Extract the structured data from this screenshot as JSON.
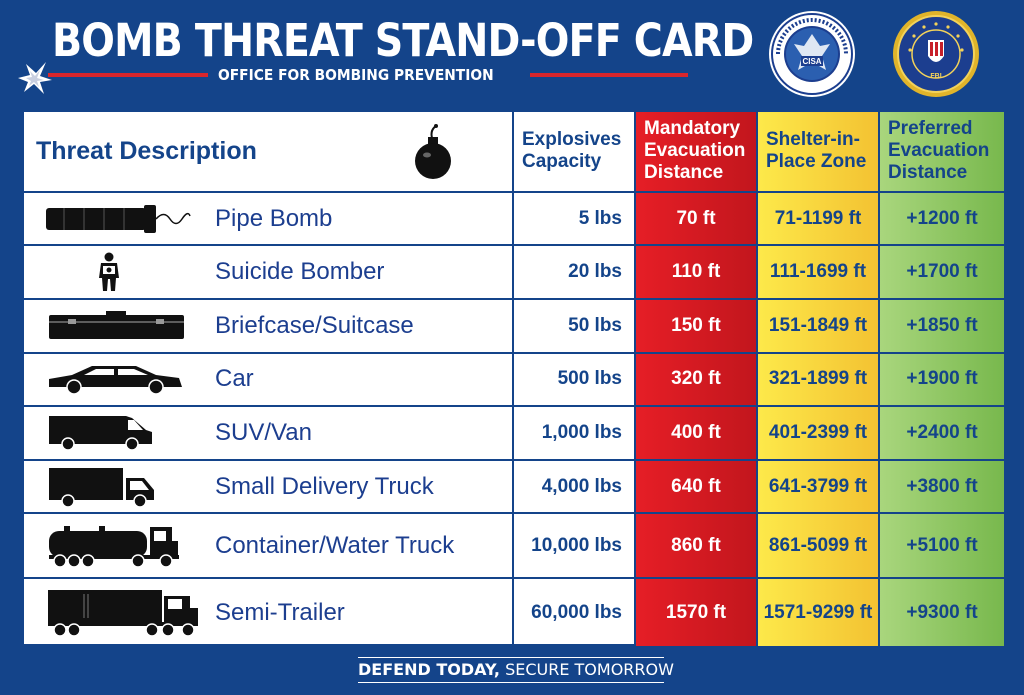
{
  "header": {
    "title": "BOMB THREAT STAND-OFF CARD",
    "subtitle": "OFFICE FOR BOMBING PREVENTION",
    "seal_left_text": "CISA",
    "seal_right_text": "FBI"
  },
  "table": {
    "headers": {
      "threat": "Threat Description",
      "capacity": [
        "Explosives",
        "Capacity"
      ],
      "mandatory": [
        "Mandatory",
        "Evacuation",
        "Distance"
      ],
      "shelter": [
        "Shelter-in-",
        "Place Zone"
      ],
      "preferred": [
        "Preferred",
        "Evacuation",
        "Distance"
      ]
    },
    "rows": [
      {
        "icon": "pipe-bomb-icon",
        "name": "Pipe Bomb",
        "capacity": "5 lbs",
        "mandatory": "70 ft",
        "shelter": "71-1199 ft",
        "preferred": "+1200 ft"
      },
      {
        "icon": "suicide-bomber-icon",
        "name": "Suicide Bomber",
        "capacity": "20 lbs",
        "mandatory": "110 ft",
        "shelter": "111-1699 ft",
        "preferred": "+1700 ft"
      },
      {
        "icon": "briefcase-icon",
        "name": "Briefcase/Suitcase",
        "capacity": "50 lbs",
        "mandatory": "150 ft",
        "shelter": "151-1849 ft",
        "preferred": "+1850 ft"
      },
      {
        "icon": "car-icon",
        "name": "Car",
        "capacity": "500 lbs",
        "mandatory": "320 ft",
        "shelter": "321-1899 ft",
        "preferred": "+1900 ft"
      },
      {
        "icon": "van-icon",
        "name": "SUV/Van",
        "capacity": "1,000 lbs",
        "mandatory": "400 ft",
        "shelter": "401-2399 ft",
        "preferred": "+2400 ft"
      },
      {
        "icon": "delivery-truck-icon",
        "name": "Small Delivery Truck",
        "capacity": "4,000 lbs",
        "mandatory": "640 ft",
        "shelter": "641-3799 ft",
        "preferred": "+3800 ft"
      },
      {
        "icon": "water-truck-icon",
        "name": "Container/Water Truck",
        "capacity": "10,000 lbs",
        "mandatory": "860 ft",
        "shelter": "861-5099 ft",
        "preferred": "+5100 ft"
      },
      {
        "icon": "semi-trailer-icon",
        "name": "Semi-Trailer",
        "capacity": "60,000 lbs",
        "mandatory": "1570 ft",
        "shelter": "1571-9299 ft",
        "preferred": "+9300 ft"
      }
    ]
  },
  "footer": {
    "bold": "DEFEND TODAY,",
    "light": " SECURE TOMORROW"
  },
  "colors": {
    "background": "#14448a",
    "mandatory": "#e61e26",
    "shelter": "#fde94a",
    "preferred": "#a9d67d",
    "accent_line": "#d8262c"
  }
}
